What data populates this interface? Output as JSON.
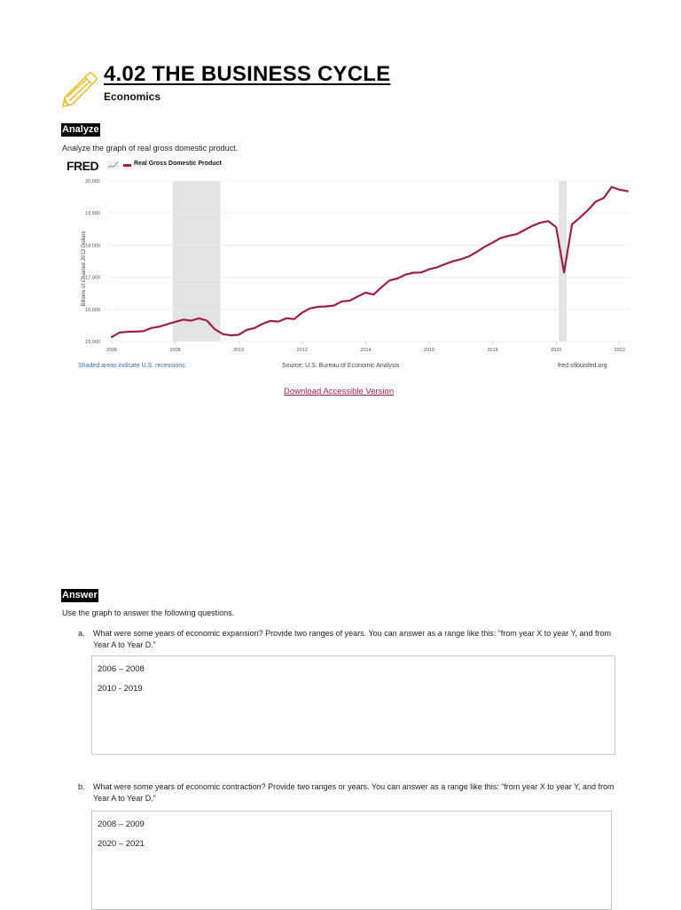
{
  "header": {
    "title": "4.02 THE BUSINESS CYCLE",
    "subtitle": "Economics",
    "icon": "pencil-icon",
    "icon_color": "#e8c23a"
  },
  "analyze": {
    "label": "Analyze",
    "instruction": "Analyze the graph of real gross domestic product."
  },
  "chart_header": {
    "logo": "FRED",
    "legend_label": "Real Gross Domestic Product",
    "legend_color": "#9c1f47"
  },
  "chart_footer": {
    "recession_note": "Shaded areas indicate U.S. recessions.",
    "source": "Source: U.S. Bureau of Economic Analysis",
    "site": "fred.stlouisfed.org"
  },
  "download_link": "Download Accessible Version",
  "chart_data": {
    "type": "line",
    "title": "Real Gross Domestic Product",
    "xlabel": "",
    "ylabel": "Billions of Chained 2012 Dollars",
    "xlim": [
      2005.9,
      2022.3
    ],
    "ylim": [
      15000,
      20000
    ],
    "x_ticks": [
      2006,
      2008,
      2010,
      2012,
      2014,
      2016,
      2018,
      2020,
      2022
    ],
    "y_ticks": [
      15000,
      16000,
      17000,
      18000,
      19000,
      20000
    ],
    "y_tick_labels": [
      "15,000",
      "16,000",
      "17,000",
      "18,000",
      "19,000",
      "20,000"
    ],
    "grid": true,
    "legend_position": "top-left",
    "line_color": "#9c1f47",
    "recessions": [
      [
        2007.92,
        2009.42
      ],
      [
        2020.08,
        2020.33
      ]
    ],
    "series": [
      {
        "name": "Real Gross Domestic Product",
        "x": [
          2006.0,
          2006.25,
          2006.5,
          2006.75,
          2007.0,
          2007.25,
          2007.5,
          2007.75,
          2008.0,
          2008.25,
          2008.5,
          2008.75,
          2009.0,
          2009.25,
          2009.5,
          2009.75,
          2010.0,
          2010.25,
          2010.5,
          2010.75,
          2011.0,
          2011.25,
          2011.5,
          2011.75,
          2012.0,
          2012.25,
          2012.5,
          2012.75,
          2013.0,
          2013.25,
          2013.5,
          2013.75,
          2014.0,
          2014.25,
          2014.5,
          2014.75,
          2015.0,
          2015.25,
          2015.5,
          2015.75,
          2016.0,
          2016.25,
          2016.5,
          2016.75,
          2017.0,
          2017.25,
          2017.5,
          2017.75,
          2018.0,
          2018.25,
          2018.5,
          2018.75,
          2019.0,
          2019.25,
          2019.5,
          2019.75,
          2020.0,
          2020.25,
          2020.5,
          2020.75,
          2021.0,
          2021.25,
          2021.5,
          2021.75,
          2022.0,
          2022.25
        ],
        "values": [
          15140,
          15280,
          15300,
          15310,
          15320,
          15420,
          15460,
          15540,
          15610,
          15680,
          15650,
          15720,
          15650,
          15380,
          15230,
          15190,
          15210,
          15360,
          15420,
          15550,
          15640,
          15620,
          15720,
          15700,
          15900,
          16030,
          16080,
          16090,
          16120,
          16250,
          16270,
          16400,
          16520,
          16460,
          16690,
          16900,
          16960,
          17080,
          17140,
          17150,
          17250,
          17310,
          17410,
          17500,
          17560,
          17650,
          17790,
          17950,
          18080,
          18220,
          18290,
          18340,
          18470,
          18600,
          18700,
          18750,
          18560,
          17150,
          18650,
          18860,
          19090,
          19360,
          19470,
          19810,
          19730,
          19680
        ]
      }
    ]
  },
  "answer": {
    "label": "Answer",
    "instruction": "Use the graph to answer the following questions.",
    "questions": [
      {
        "marker": "a.",
        "text": "What were some years of economic expansion? Provide two ranges of years. You can answer as a range like this: “from year X to year Y, and from Year A to Year D.”",
        "answer_lines": [
          "2006 – 2008",
          "2010 - 2019"
        ]
      },
      {
        "marker": "b.",
        "text": "What were some years of economic contraction? Provide two ranges or years. You can answer as a range like this: “from year X to year Y, and from Year A to Year D.”",
        "answer_lines": [
          "2008 – 2009",
          "2020 –  2021"
        ]
      }
    ]
  }
}
